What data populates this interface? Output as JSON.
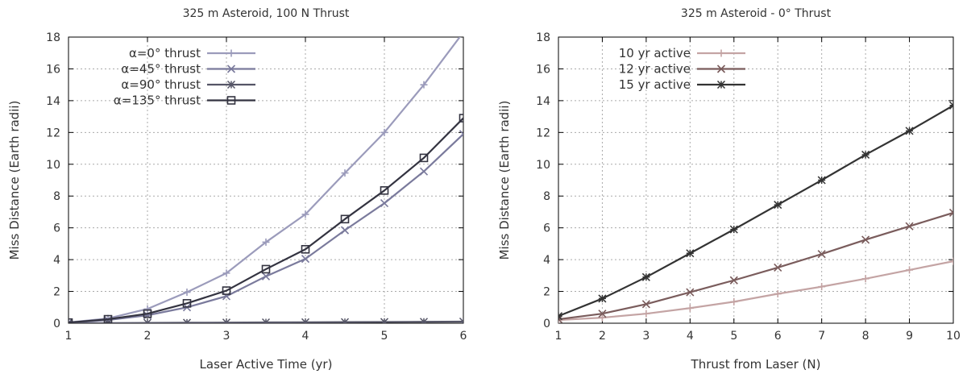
{
  "chart_data": [
    {
      "type": "line",
      "title": "325 m Asteroid, 100 N Thrust",
      "xlabel": "Laser Active Time (yr)",
      "ylabel": "Miss Distance (Earth radii)",
      "xlim": [
        1,
        6
      ],
      "ylim": [
        0,
        18
      ],
      "xticks": [
        1,
        2,
        3,
        4,
        5,
        6
      ],
      "yticks": [
        0,
        2,
        4,
        6,
        8,
        10,
        12,
        14,
        16,
        18
      ],
      "grid": true,
      "legend": "top-left",
      "x": [
        1,
        1.5,
        2,
        2.5,
        3,
        3.5,
        4,
        4.5,
        5,
        5.5,
        6
      ],
      "series": [
        {
          "name": "α=0° thrust",
          "marker": "plus",
          "color": "#9b9bbb",
          "values": [
            0.05,
            0.3,
            0.9,
            1.95,
            3.15,
            5.1,
            6.85,
            9.45,
            12.0,
            15.0,
            18.3
          ]
        },
        {
          "name": "α=45° thrust",
          "marker": "cross",
          "color": "#7a7a9c",
          "values": [
            0.03,
            0.2,
            0.5,
            1.0,
            1.7,
            2.95,
            4.05,
            5.85,
            7.55,
            9.55,
            11.9
          ]
        },
        {
          "name": "α=90° thrust",
          "marker": "star",
          "color": "#555566",
          "values": [
            0.0,
            0.01,
            0.02,
            0.03,
            0.04,
            0.05,
            0.06,
            0.07,
            0.08,
            0.09,
            0.1
          ]
        },
        {
          "name": "α=135° thrust",
          "marker": "square",
          "color": "#333340",
          "values": [
            0.04,
            0.25,
            0.6,
            1.25,
            2.05,
            3.4,
            4.65,
            6.55,
            8.35,
            10.4,
            12.9
          ]
        }
      ]
    },
    {
      "type": "line",
      "title": "325 m Asteroid - 0° Thrust",
      "xlabel": "Thrust from Laser (N)",
      "ylabel": "Miss Distance (Earth radii)",
      "xlim": [
        1,
        10
      ],
      "ylim": [
        0,
        18
      ],
      "xticks": [
        1,
        2,
        3,
        4,
        5,
        6,
        7,
        8,
        9,
        10
      ],
      "yticks": [
        0,
        2,
        4,
        6,
        8,
        10,
        12,
        14,
        16,
        18
      ],
      "grid": true,
      "legend": "top-left",
      "x": [
        1,
        2,
        3,
        4,
        5,
        6,
        7,
        8,
        9,
        10
      ],
      "series": [
        {
          "name": "10 yr active",
          "marker": "plus",
          "color": "#c4a4a4",
          "values": [
            0.2,
            0.35,
            0.6,
            0.95,
            1.35,
            1.85,
            2.3,
            2.8,
            3.35,
            3.9
          ]
        },
        {
          "name": "12 yr active",
          "marker": "cross",
          "color": "#7a5c5c",
          "values": [
            0.25,
            0.6,
            1.2,
            1.95,
            2.7,
            3.5,
            4.35,
            5.25,
            6.1,
            6.95
          ]
        },
        {
          "name": "15 yr active",
          "marker": "star",
          "color": "#333333",
          "values": [
            0.45,
            1.55,
            2.9,
            4.4,
            5.9,
            7.45,
            9.0,
            10.6,
            12.1,
            13.7
          ]
        }
      ]
    }
  ]
}
